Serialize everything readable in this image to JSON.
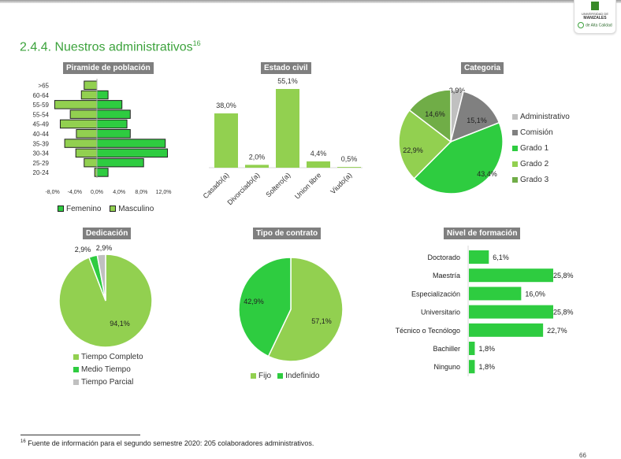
{
  "header": {
    "logo": {
      "line1": "UNIVERSIDAD DE",
      "line2": "MANIZALES",
      "line3": "de Alta Calidad"
    },
    "section_title": "2.4.4. Nuestros administrativos",
    "footnote_ref": "16"
  },
  "colors": {
    "title_green": "#3da33d",
    "femenino": "#2ecc40",
    "masculino": "#92d050",
    "grado3": "#70ad47",
    "gray_dark": "#808080",
    "gray_light": "#c0c0c0",
    "chart_title_bg": "#7f7f7f"
  },
  "chart_data": [
    {
      "id": "piramide",
      "type": "bar",
      "orientation": "horizontal-diverging",
      "title": "Piramide de población",
      "categories": [
        ">65",
        "60-64",
        "55-59",
        "55-54",
        "45-49",
        "40-44",
        "35-39",
        "30-34",
        "25-29",
        "20-24"
      ],
      "series": [
        {
          "name": "Femenino",
          "values": [
            0.0,
            2.0,
            4.5,
            6.0,
            5.4,
            6.0,
            12.3,
            12.7,
            8.4,
            2.0
          ]
        },
        {
          "name": "Masculino",
          "values": [
            -2.3,
            -2.8,
            -7.6,
            -4.8,
            -6.6,
            -3.7,
            -5.8,
            -3.8,
            -2.3,
            -0.4
          ]
        }
      ],
      "xlim": [
        -8,
        12
      ],
      "xticks": [
        "-8,0%",
        "-4,0%",
        "0,0%",
        "4,0%",
        "8,0%",
        "12,0%"
      ],
      "xtick_values": [
        -8,
        -4,
        0,
        4,
        8,
        12
      ],
      "legend": [
        "Femenino",
        "Masculino"
      ],
      "legend_position": "bottom"
    },
    {
      "id": "estado-civil",
      "type": "bar",
      "title": "Estado civil",
      "categories": [
        "Casado(a)",
        "Divorciado(a)",
        "Soltero(a)",
        "Union libre",
        "Viudo(a)"
      ],
      "values": [
        38.0,
        2.0,
        55.1,
        4.4,
        0.5
      ],
      "labels": [
        "38,0%",
        "2,0%",
        "55,1%",
        "4,4%",
        "0,5%"
      ],
      "ylim": [
        0,
        60
      ]
    },
    {
      "id": "categoria",
      "type": "pie",
      "title": "Categoria",
      "categories": [
        "Administrativo",
        "Comisión",
        "Grado 1",
        "Grado 2",
        "Grado 3"
      ],
      "values": [
        3.9,
        15.1,
        43.4,
        22.9,
        14.6
      ],
      "labels": [
        "3,9%",
        "15,1%",
        "43,4%",
        "22,9%",
        "14,6%"
      ],
      "colors": [
        "#c0c0c0",
        "#808080",
        "#2ecc40",
        "#92d050",
        "#70ad47"
      ],
      "legend_position": "right"
    },
    {
      "id": "dedicacion",
      "type": "pie",
      "title": "Dedicación",
      "categories": [
        "Tiempo Completo",
        "Medio Tiempo",
        "Tiempo Parcial"
      ],
      "values": [
        94.1,
        2.9,
        2.9
      ],
      "labels": [
        "94,1%",
        "2,9%",
        "2,9%"
      ],
      "colors": [
        "#92d050",
        "#2ecc40",
        "#c0c0c0"
      ],
      "legend_position": "bottom"
    },
    {
      "id": "tipo-contrato",
      "type": "pie",
      "title": "Tipo de contrato",
      "categories": [
        "Fijo",
        "Indefinido"
      ],
      "values": [
        57.1,
        42.9
      ],
      "labels": [
        "57,1%",
        "42,9%"
      ],
      "colors": [
        "#92d050",
        "#2ecc40"
      ],
      "legend_position": "bottom"
    },
    {
      "id": "nivel-formacion",
      "type": "bar",
      "orientation": "horizontal",
      "title": "Nivel de formación",
      "categories": [
        "Doctorado",
        "Maestría",
        "Especialización",
        "Universitario",
        "Técnico o Tecnólogo",
        "Bachiller",
        "Ninguno"
      ],
      "values": [
        6.1,
        25.8,
        16.0,
        25.8,
        22.7,
        1.8,
        1.8
      ],
      "labels": [
        "6,1%",
        "25,8%",
        "16,0%",
        "25,8%",
        "22,7%",
        "1,8%",
        "1,8%"
      ],
      "xlim": [
        0,
        26
      ]
    }
  ],
  "footnote": {
    "number": "16",
    "text": "Fuente de información para el segundo semestre 2020: 205 colaboradores administrativos."
  },
  "page_number": "66"
}
